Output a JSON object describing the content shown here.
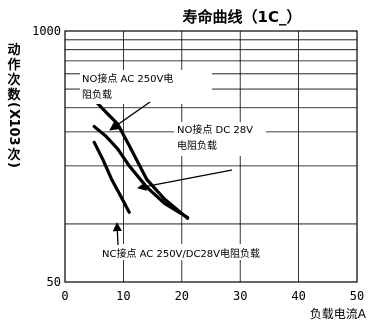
{
  "chart_data": {
    "type": "line",
    "title": "寿命曲线（1C_）",
    "ylabel": "动作次数(X103次)",
    "xlabel": "负载电流A",
    "xlim": [
      0,
      50
    ],
    "ylim": [
      50,
      1000
    ],
    "yscale": "log",
    "x_ticks": [
      "0",
      "10",
      "20",
      "30",
      "40",
      "50"
    ],
    "y_ticks": [
      "50",
      "1000"
    ],
    "grid": true,
    "series": [
      {
        "x": [
          5,
          7,
          9,
          11,
          14,
          17,
          21
        ],
        "y": [
          440,
          380,
          330,
          255,
          170,
          135,
          107
        ]
      },
      {
        "x": [
          5,
          7,
          9,
          11,
          14,
          17,
          21
        ],
        "y": [
          320,
          285,
          245,
          200,
          155,
          128,
          108
        ]
      },
      {
        "x": [
          5,
          6.5,
          8,
          9.5,
          11
        ],
        "y": [
          265,
          215,
          170,
          140,
          115
        ]
      }
    ],
    "annotations": [
      {
        "text": "NO接点 AC 250V电",
        "text2": "阻负载"
      },
      {
        "text": "NO接点 DC 28V",
        "text2": "电阻负载"
      },
      {
        "text": "NC接点 AC 250V/DC28V电阻负载"
      }
    ]
  }
}
